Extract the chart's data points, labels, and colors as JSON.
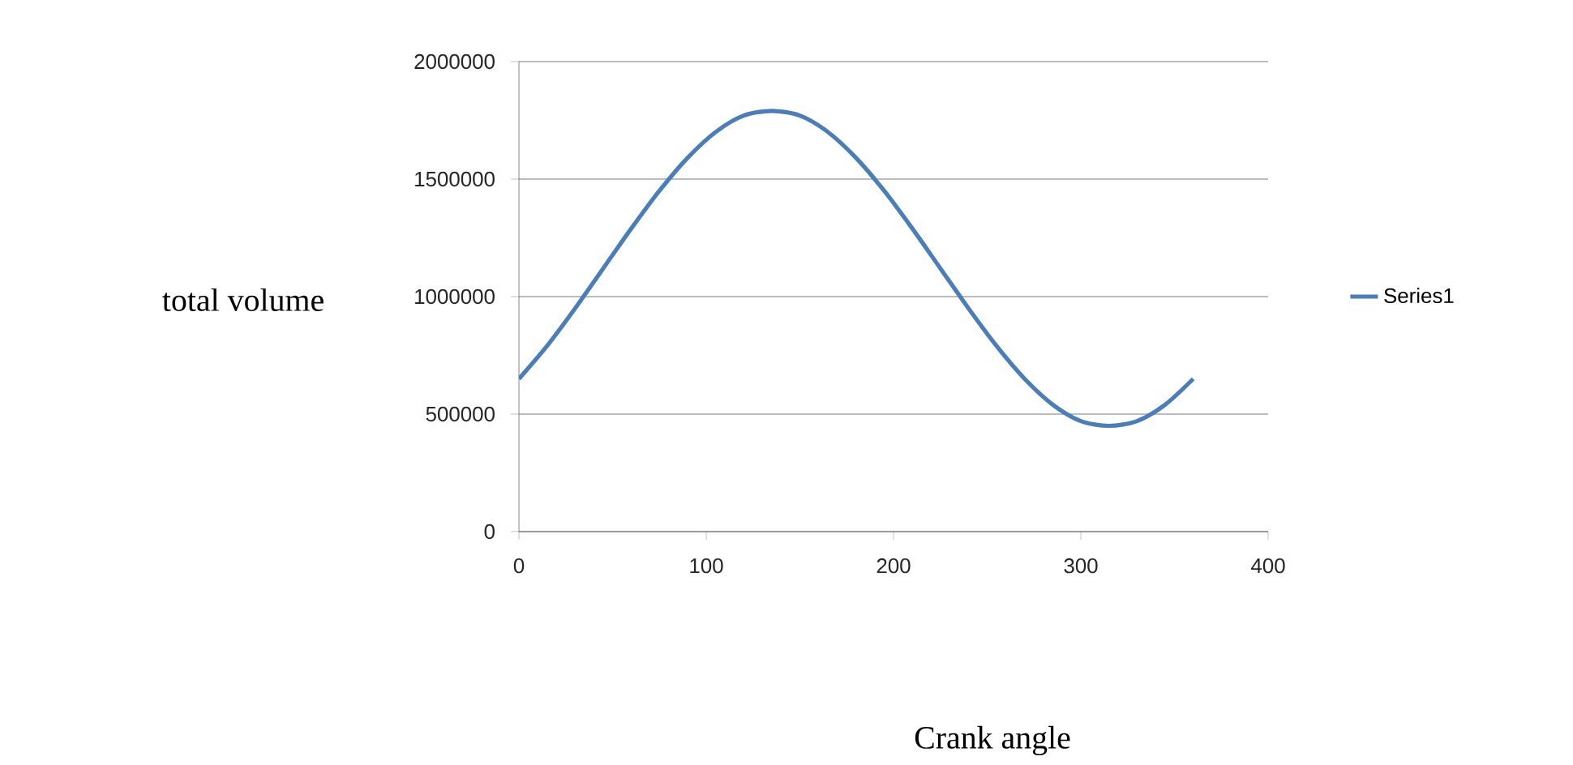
{
  "chart_data": {
    "type": "line",
    "xlabel": "Crank angle",
    "ylabel": "total volume",
    "x": [
      0,
      15,
      30,
      45,
      60,
      75,
      90,
      105,
      120,
      135,
      150,
      165,
      180,
      195,
      210,
      225,
      240,
      255,
      270,
      285,
      300,
      315,
      330,
      345,
      360
    ],
    "series": [
      {
        "name": "Series1",
        "color": "#4a7ebb",
        "values": [
          650000,
          790000,
          950000,
          1120000,
          1290000,
          1450000,
          1590000,
          1700000,
          1770000,
          1790000,
          1770000,
          1700000,
          1590000,
          1450000,
          1290000,
          1120000,
          950000,
          790000,
          650000,
          540000,
          470000,
          450000,
          470000,
          540000,
          650000
        ]
      }
    ],
    "xlim": [
      0,
      400
    ],
    "xticks": [
      0,
      100,
      200,
      300,
      400
    ],
    "ylim": [
      0,
      2000000
    ],
    "yticks": [
      0,
      500000,
      1000000,
      1500000,
      2000000
    ],
    "grid": "y",
    "legend": "right",
    "marker": "none",
    "line_style": "solid"
  }
}
